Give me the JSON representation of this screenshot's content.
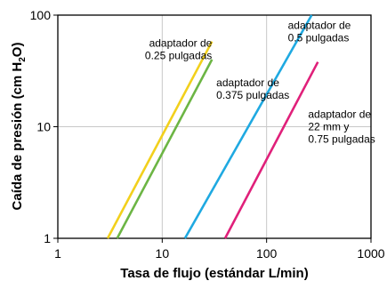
{
  "chart_data": {
    "type": "line",
    "xlabel": "Tasa de flujo (estándar L/min)",
    "ylabel_main": "Caída de presión (cm H",
    "ylabel_sub": "2",
    "ylabel_tail": "O)",
    "x_scale": "log",
    "y_scale": "log",
    "xlim": [
      1,
      1000
    ],
    "ylim": [
      1,
      100
    ],
    "x_ticks": [
      1,
      10,
      100,
      1000
    ],
    "x_tick_labels": [
      "1",
      "10",
      "100",
      "1000"
    ],
    "y_ticks": [
      1,
      10,
      100
    ],
    "y_tick_labels": [
      "1",
      "10",
      "100"
    ],
    "grid": "major lines",
    "series": [
      {
        "name_lines": [
          "adaptador de",
          "0.25 pulgadas"
        ],
        "color": "#f2d01c",
        "x": [
          3.0,
          30.0
        ],
        "y": [
          1.0,
          58.0
        ]
      },
      {
        "name_lines": [
          "adaptador de",
          "0.375 pulgadas"
        ],
        "color": "#6cb544",
        "x": [
          3.7,
          30.0
        ],
        "y": [
          1.0,
          40.0
        ]
      },
      {
        "name_lines": [
          "adaptador de",
          "0.5 pulgadas"
        ],
        "color": "#1fa9e1",
        "x": [
          16.5,
          270.0
        ],
        "y": [
          1.0,
          100.0
        ]
      },
      {
        "name_lines": [
          "adaptador de",
          "22 mm y",
          "0.75 pulgadas"
        ],
        "color": "#e0207a",
        "x": [
          40.0,
          310.0
        ],
        "y": [
          1.0,
          38.0
        ]
      }
    ],
    "annotations": [
      {
        "series": 0,
        "x": 30.0,
        "y": 52.0,
        "anchor": "end"
      },
      {
        "series": 1,
        "x": 33.0,
        "y": 23.0,
        "anchor": "start"
      },
      {
        "series": 2,
        "x": 160.0,
        "y": 75.0,
        "anchor": "start"
      },
      {
        "series": 3,
        "x": 250.0,
        "y": 12.0,
        "anchor": "start"
      }
    ]
  }
}
